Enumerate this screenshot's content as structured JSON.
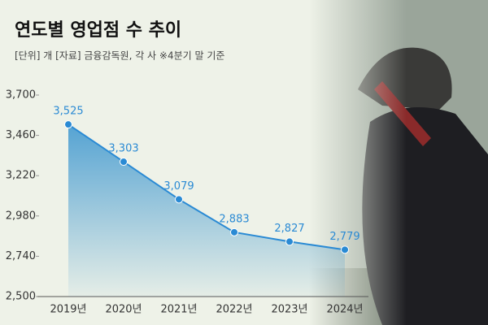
{
  "chart_data": {
    "type": "area",
    "title": "연도별 영업점 수 추이",
    "subtitle": "[단위] 개 [자료] 금융감독원, 각 사 ※4분기 말 기준",
    "categories": [
      "2019년",
      "2020년",
      "2021년",
      "2022년",
      "2023년",
      "2024년"
    ],
    "values": [
      3525,
      3303,
      3079,
      2883,
      2827,
      2779
    ],
    "value_labels": [
      "3,525",
      "3,303",
      "3,079",
      "2,883",
      "2,827",
      "2,779"
    ],
    "color": "#2a8ad4",
    "ylim": [
      2500,
      3700
    ],
    "yticks": [
      {
        "value": 2500,
        "label": "2,500"
      },
      {
        "value": 2740,
        "label": "2,740"
      },
      {
        "value": 2980,
        "label": "2,980"
      },
      {
        "value": 3220,
        "label": "3,220"
      },
      {
        "value": 3460,
        "label": "3,460"
      },
      {
        "value": 3700,
        "label": "3,700"
      }
    ]
  }
}
